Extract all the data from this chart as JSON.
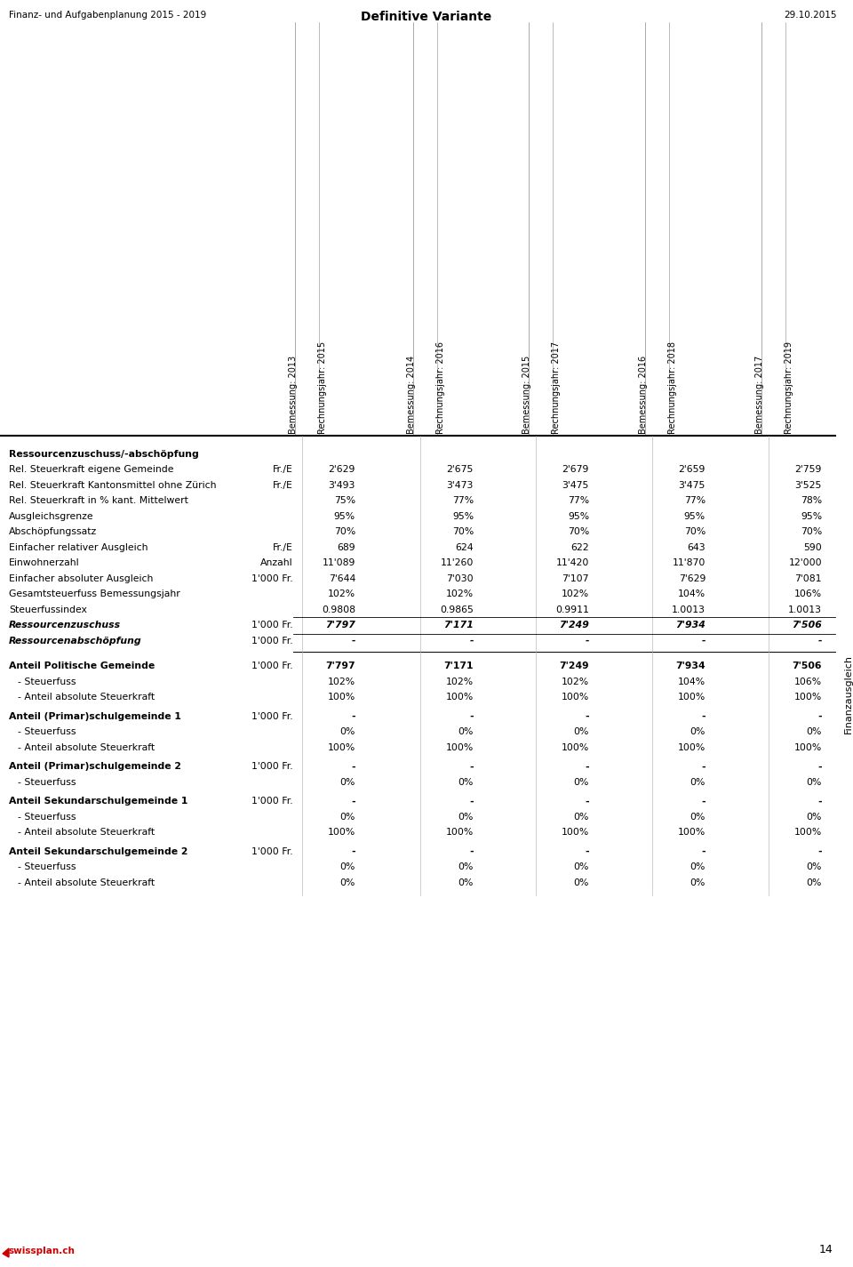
{
  "title_left": "Finanz- und Aufgabenplanung 2015 - 2019",
  "title_center": "Definitive Variante",
  "title_right": "29.10.2015",
  "page_number": "14",
  "right_label": "Finanzausgleich",
  "col_header_line1": [
    "Bemessung: 2013",
    "Bemessung: 2014",
    "Bemessung: 2015",
    "Bemessung: 2016",
    "Bemessung: 2017"
  ],
  "col_header_line2": [
    "Rechnungsjahr: 2015",
    "Rechnungsjahr: 2016",
    "Rechnungsjahr: 2017",
    "Rechnungsjahr: 2018",
    "Rechnungsjahr: 2019"
  ],
  "rows": [
    {
      "label": "Ressourcenzuschuss/-abschöpfung",
      "unit": "",
      "values": [
        "",
        "",
        "",
        "",
        ""
      ],
      "bold": true,
      "italic": false
    },
    {
      "label": "Rel. Steuerkraft eigene Gemeinde",
      "unit": "Fr./E",
      "values": [
        "2'629",
        "2'675",
        "2'679",
        "2'659",
        "2'759"
      ],
      "bold": false,
      "italic": false
    },
    {
      "label": "Rel. Steuerkraft Kantonsmittel ohne Zürich",
      "unit": "Fr./E",
      "values": [
        "3'493",
        "3'473",
        "3'475",
        "3'475",
        "3'525"
      ],
      "bold": false,
      "italic": false
    },
    {
      "label": "Rel. Steuerkraft in % kant. Mittelwert",
      "unit": "",
      "values": [
        "75%",
        "77%",
        "77%",
        "77%",
        "78%"
      ],
      "bold": false,
      "italic": false
    },
    {
      "label": "Ausgleichsgrenze",
      "unit": "",
      "values": [
        "95%",
        "95%",
        "95%",
        "95%",
        "95%"
      ],
      "bold": false,
      "italic": false
    },
    {
      "label": "Abschöpfungssatz",
      "unit": "",
      "values": [
        "70%",
        "70%",
        "70%",
        "70%",
        "70%"
      ],
      "bold": false,
      "italic": false
    },
    {
      "label": "Einfacher relativer Ausgleich",
      "unit": "Fr./E",
      "values": [
        "689",
        "624",
        "622",
        "643",
        "590"
      ],
      "bold": false,
      "italic": false
    },
    {
      "label": "Einwohnerzahl",
      "unit": "Anzahl",
      "values": [
        "11'089",
        "11'260",
        "11'420",
        "11'870",
        "12'000"
      ],
      "bold": false,
      "italic": false
    },
    {
      "label": "Einfacher absoluter Ausgleich",
      "unit": "1'000 Fr.",
      "values": [
        "7'644",
        "7'030",
        "7'107",
        "7'629",
        "7'081"
      ],
      "bold": false,
      "italic": false
    },
    {
      "label": "Gesamtsteuerfuss Bemessungsjahr",
      "unit": "",
      "values": [
        "102%",
        "102%",
        "102%",
        "104%",
        "106%"
      ],
      "bold": false,
      "italic": false
    },
    {
      "label": "Steuerfussindex",
      "unit": "",
      "values": [
        "0.9808",
        "0.9865",
        "0.9911",
        "1.0013",
        "1.0013"
      ],
      "bold": false,
      "italic": false
    },
    {
      "label": "Ressourcenzuschuss",
      "unit": "1'000 Fr.",
      "values": [
        "7'797",
        "7'171",
        "7'249",
        "7'934",
        "7'506"
      ],
      "bold": true,
      "italic": true
    },
    {
      "label": "Ressourcenabschöpfung",
      "unit": "1'000 Fr.",
      "values": [
        "-",
        "-",
        "-",
        "-",
        "-"
      ],
      "bold": true,
      "italic": true
    }
  ],
  "rows2": [
    {
      "label": "Anteil Politische Gemeinde",
      "unit": "1'000 Fr.",
      "values": [
        "7'797",
        "7'171",
        "7'249",
        "7'934",
        "7'506"
      ],
      "bold": true,
      "sub": false
    },
    {
      "label": "- Steuerfuss",
      "unit": "",
      "values": [
        "102%",
        "102%",
        "102%",
        "104%",
        "106%"
      ],
      "bold": false,
      "sub": true
    },
    {
      "label": "- Anteil absolute Steuerkraft",
      "unit": "",
      "values": [
        "100%",
        "100%",
        "100%",
        "100%",
        "100%"
      ],
      "bold": false,
      "sub": true
    },
    {
      "label": "Anteil (Primar)schulgemeinde 1",
      "unit": "1'000 Fr.",
      "values": [
        "-",
        "-",
        "-",
        "-",
        "-"
      ],
      "bold": true,
      "sub": false
    },
    {
      "label": "- Steuerfuss",
      "unit": "",
      "values": [
        "0%",
        "0%",
        "0%",
        "0%",
        "0%"
      ],
      "bold": false,
      "sub": true
    },
    {
      "label": "- Anteil absolute Steuerkraft",
      "unit": "",
      "values": [
        "100%",
        "100%",
        "100%",
        "100%",
        "100%"
      ],
      "bold": false,
      "sub": true
    },
    {
      "label": "Anteil (Primar)schulgemeinde 2",
      "unit": "1'000 Fr.",
      "values": [
        "-",
        "-",
        "-",
        "-",
        "-"
      ],
      "bold": true,
      "sub": false
    },
    {
      "label": "- Steuerfuss",
      "unit": "",
      "values": [
        "0%",
        "0%",
        "0%",
        "0%",
        "0%"
      ],
      "bold": false,
      "sub": true
    },
    {
      "label": "Anteil Sekundarschulgemeinde 1",
      "unit": "1'000 Fr.",
      "values": [
        "-",
        "-",
        "-",
        "-",
        "-"
      ],
      "bold": true,
      "sub": false
    },
    {
      "label": "- Steuerfuss",
      "unit": "",
      "values": [
        "0%",
        "0%",
        "0%",
        "0%",
        "0%"
      ],
      "bold": false,
      "sub": true
    },
    {
      "label": "- Anteil absolute Steuerkraft",
      "unit": "",
      "values": [
        "100%",
        "100%",
        "100%",
        "100%",
        "100%"
      ],
      "bold": false,
      "sub": true
    },
    {
      "label": "Anteil Sekundarschulgemeinde 2",
      "unit": "1'000 Fr.",
      "values": [
        "-",
        "-",
        "-",
        "-",
        "-"
      ],
      "bold": true,
      "sub": false
    },
    {
      "label": "- Steuerfuss",
      "unit": "",
      "values": [
        "0%",
        "0%",
        "0%",
        "0%",
        "0%"
      ],
      "bold": false,
      "sub": true
    },
    {
      "label": "- Anteil absolute Steuerkraft",
      "unit": "",
      "values": [
        "0%",
        "0%",
        "0%",
        "0%",
        "0%"
      ],
      "bold": false,
      "sub": true
    }
  ],
  "bg_color": "#ffffff",
  "text_color": "#000000",
  "red_color": "#cc0000"
}
